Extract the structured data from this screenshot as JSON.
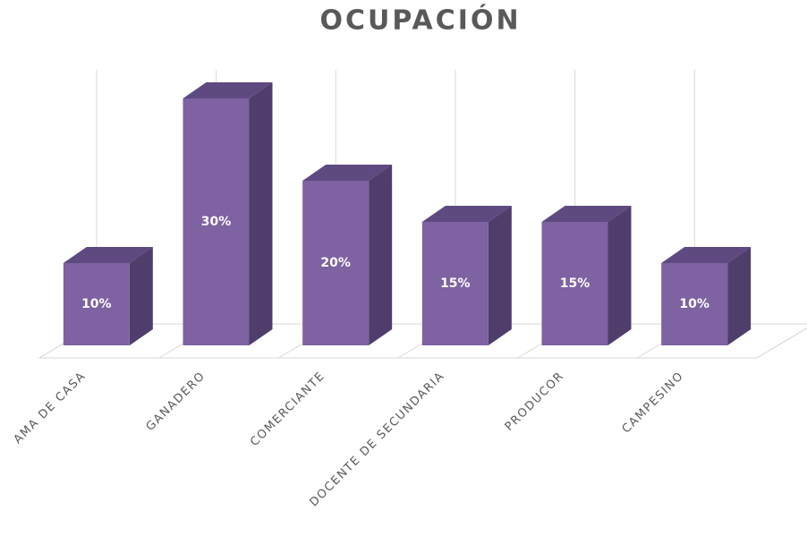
{
  "chart_data": {
    "type": "bar3d",
    "title": "OCUPACIÓN",
    "categories": [
      "AMA DE CASA",
      "GANADERO",
      "COMERCIANTE",
      "DOCENTE DE SECUNDARIA",
      "PRODUCOR",
      "CAMPESINO"
    ],
    "values": [
      10,
      30,
      20,
      15,
      15,
      10
    ],
    "value_labels": [
      "10%",
      "30%",
      "20%",
      "15%",
      "15%",
      "10%"
    ],
    "color": "#7e62a1"
  }
}
